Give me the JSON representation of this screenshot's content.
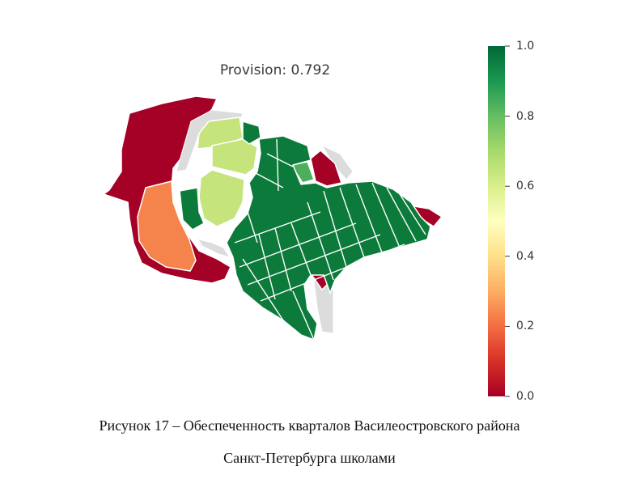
{
  "map": {
    "title": "Provision:  0.792",
    "colormap": "RdYlGn",
    "colors": {
      "full_provision": "#0b7a3a",
      "high_provision": "#4daf5a",
      "medium_high": "#c5e47c",
      "low_medium": "#f5844c",
      "no_provision": "#a50026",
      "no_data": "#dcdcdc",
      "boundary": "#ffffff"
    }
  },
  "colorbar": {
    "min": 0.0,
    "max": 1.0,
    "ticks": [
      {
        "value": 1.0,
        "label": "1.0"
      },
      {
        "value": 0.8,
        "label": "0.8"
      },
      {
        "value": 0.6,
        "label": "0.6"
      },
      {
        "value": 0.4,
        "label": "0.4"
      },
      {
        "value": 0.2,
        "label": "0.2"
      },
      {
        "value": 0.0,
        "label": "0.0"
      }
    ]
  },
  "caption": {
    "line1": "Рисунок 17 – Обеспеченность кварталов Василеостровского района",
    "line2": "Санкт-Петербурга школами"
  }
}
